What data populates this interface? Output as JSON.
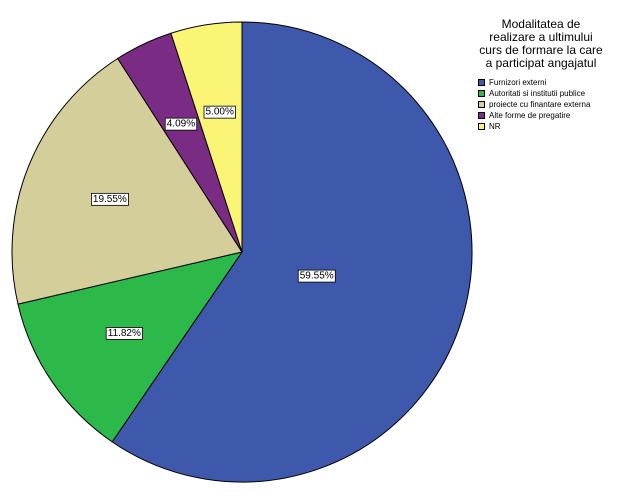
{
  "chart_data": {
    "type": "pie",
    "legend_title": "Modalitatea de\nrealizare a ultimului\ncurs de formare la care\na participat angajatul",
    "legend_placement": "top-right",
    "slices": [
      {
        "name": "Furnizori externi",
        "value": 59.55,
        "label": "59.55%",
        "color": "#3e59ab"
      },
      {
        "name": "Autoritati si institutii publice",
        "value": 11.82,
        "label": "11.82%",
        "color": "#2db84a"
      },
      {
        "name": "proiecte cu finantare externa",
        "value": 19.55,
        "label": "19.55%",
        "color": "#d4ce9a"
      },
      {
        "name": "Alte forme de pregatire",
        "value": 4.09,
        "label": "4.09%",
        "color": "#7a2c85"
      },
      {
        "name": "NR",
        "value": 5.0,
        "label": "5.00%",
        "color": "#fbf576"
      }
    ]
  }
}
